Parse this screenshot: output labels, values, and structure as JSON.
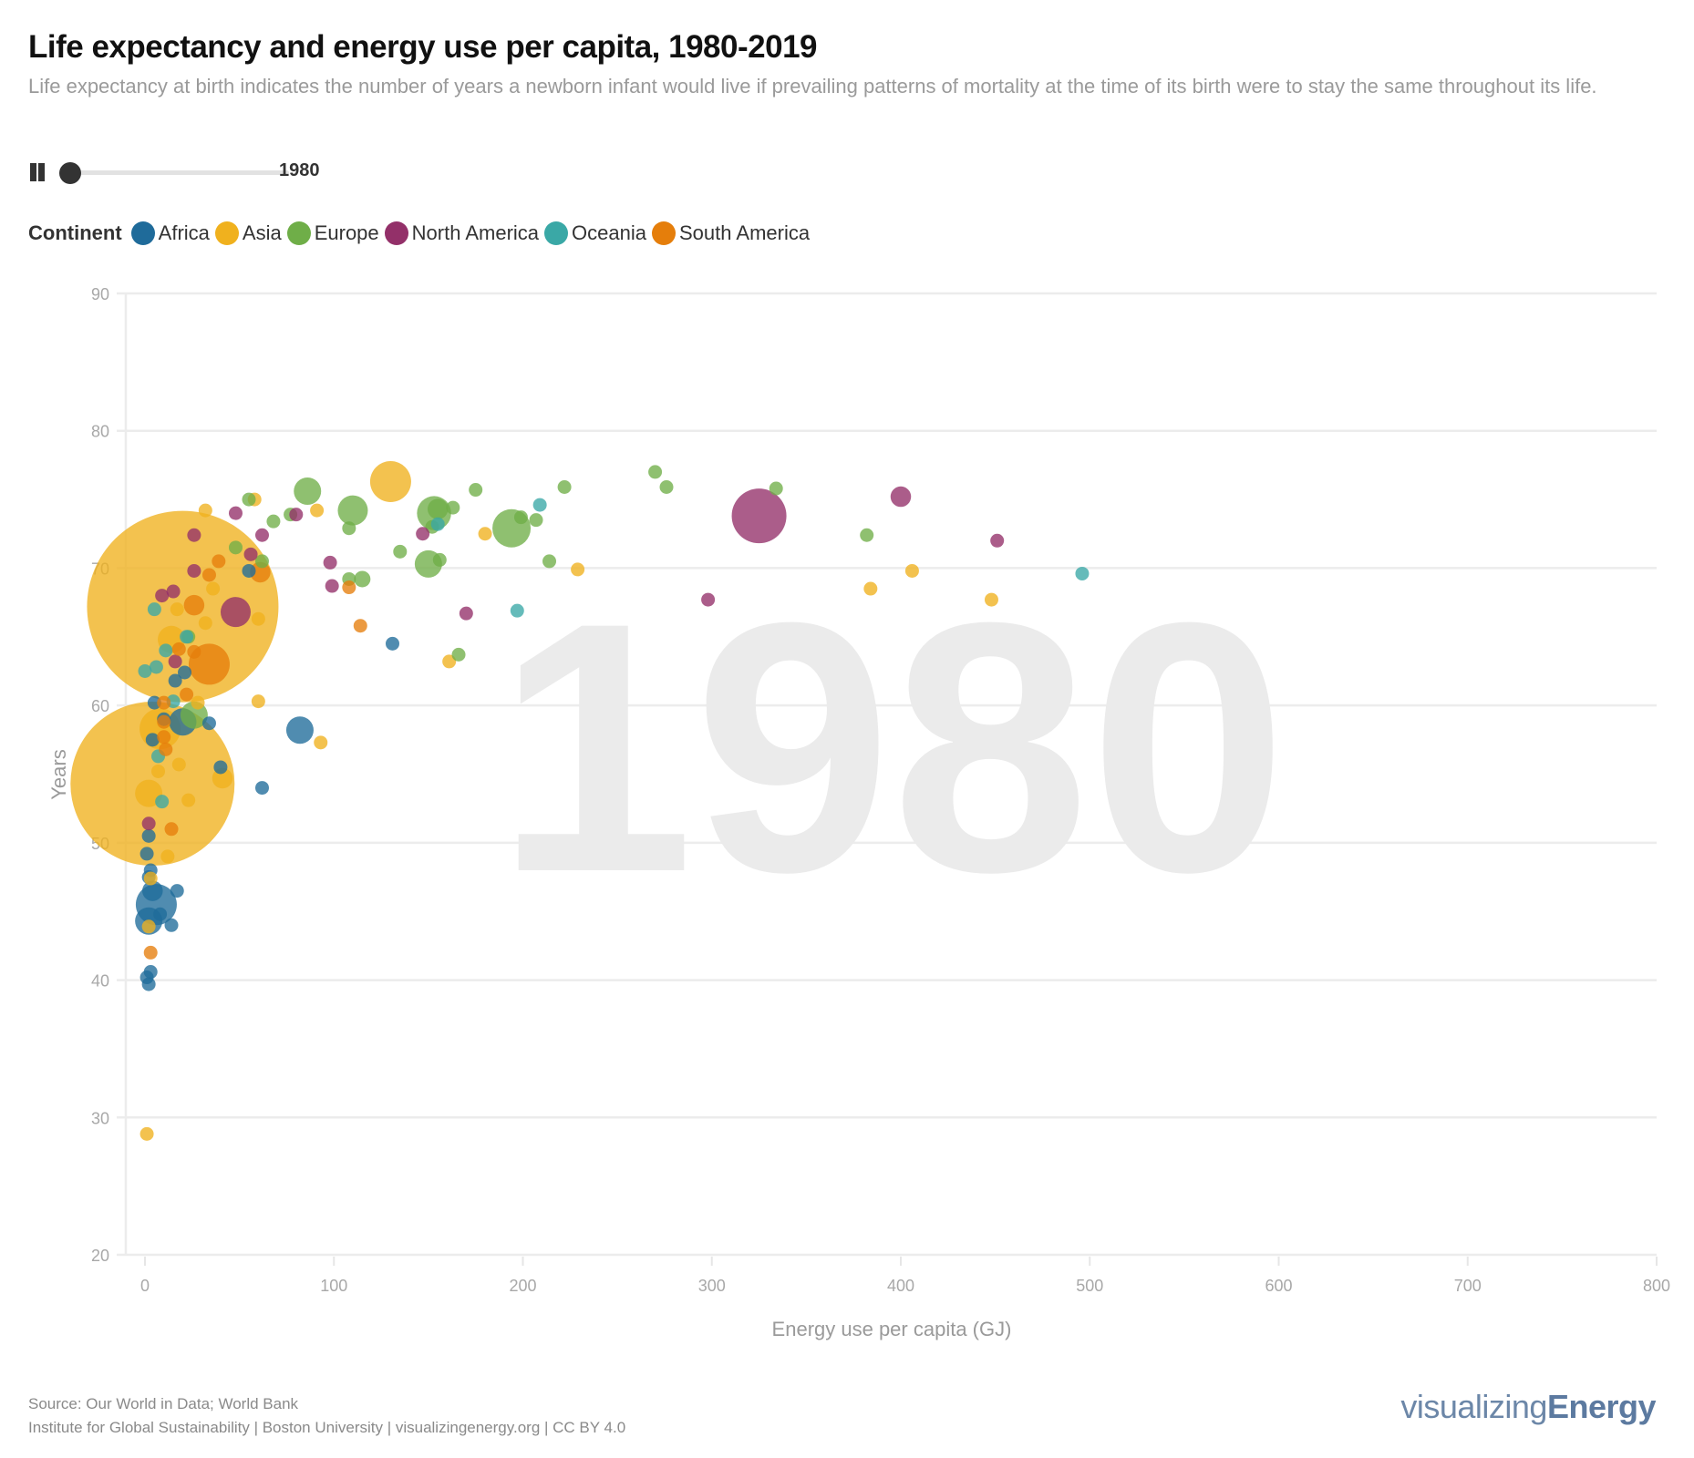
{
  "header": {
    "title": "Life expectancy and energy use per capita, 1980-2019",
    "subtitle": "Life expectancy at birth indicates the number of years a newborn infant would live if prevailing patterns of mortality at the time of its birth were to stay the same throughout its life."
  },
  "player": {
    "state_icon": "pause-icon",
    "year": "1980",
    "year_range": [
      1980,
      2019
    ],
    "progress": 0
  },
  "legend": {
    "title": "Continent",
    "items": [
      {
        "label": "Africa",
        "color": "#1f6b9a"
      },
      {
        "label": "Asia",
        "color": "#f0b11e"
      },
      {
        "label": "Europe",
        "color": "#6fae48"
      },
      {
        "label": "North America",
        "color": "#933069"
      },
      {
        "label": "Oceania",
        "color": "#3aa8a6"
      },
      {
        "label": "South America",
        "color": "#e57e0b"
      }
    ]
  },
  "footer": {
    "source": "Source: Our World in Data; World Bank",
    "credit": "Institute for Global Sustainability | Boston University | visualizingenergy.org | CC BY 4.0",
    "brand_light": "visualizing",
    "brand_bold": "Energy"
  },
  "chart_data": {
    "type": "scatter",
    "title": "Life expectancy and energy use per capita, 1980-2019",
    "xlabel": "Energy use per capita (GJ)",
    "ylabel": "Years",
    "xlim": [
      0,
      800
    ],
    "ylim": [
      20,
      90
    ],
    "xticks": [
      "0",
      "100",
      "200",
      "300",
      "400",
      "500",
      "600",
      "700",
      "800"
    ],
    "yticks": [
      "20",
      "30",
      "40",
      "50",
      "60",
      "70",
      "80",
      "90"
    ],
    "grid": "horizontal",
    "watermark": "1980",
    "legend_placement": "top-left",
    "size_encoding": "population (relative)",
    "series": [
      {
        "name": "Africa",
        "points": [
          [
            55,
            69.8,
            1
          ],
          [
            131,
            64.5,
            1
          ],
          [
            82,
            58.2,
            2
          ],
          [
            62,
            54,
            1
          ],
          [
            40,
            55.5,
            1
          ],
          [
            34,
            58.7,
            1
          ],
          [
            20,
            58.8,
            2
          ],
          [
            16,
            61.8,
            1
          ],
          [
            21,
            62.4,
            1
          ],
          [
            5,
            60.2,
            1
          ],
          [
            4,
            57.5,
            1
          ],
          [
            2,
            50.5,
            1
          ],
          [
            1,
            49.2,
            1
          ],
          [
            2,
            47.5,
            1
          ],
          [
            4,
            46.5,
            1.5
          ],
          [
            6,
            45.5,
            3
          ],
          [
            8,
            44.8,
            1
          ],
          [
            2,
            44.3,
            2
          ],
          [
            17,
            46.5,
            1
          ],
          [
            14,
            44,
            1
          ],
          [
            3,
            40.6,
            1
          ],
          [
            1,
            40.2,
            1
          ],
          [
            2,
            39.7,
            1
          ],
          [
            3,
            48,
            1
          ],
          [
            10,
            59,
            1
          ]
        ]
      },
      {
        "name": "Asia",
        "points": [
          [
            20,
            67.2,
            14
          ],
          [
            4,
            54.3,
            12
          ],
          [
            130,
            76.3,
            3
          ],
          [
            8,
            58.3,
            3
          ],
          [
            2,
            53.6,
            2
          ],
          [
            14,
            64.8,
            2
          ],
          [
            41,
            54.7,
            1.5
          ],
          [
            32,
            74.2,
            1
          ],
          [
            58,
            75
          ],
          [
            91,
            74.2,
            1
          ],
          [
            60,
            66.3,
            1
          ],
          [
            60,
            60.3,
            1
          ],
          [
            93,
            57.3,
            1
          ],
          [
            36,
            68.5,
            1
          ],
          [
            32,
            66,
            1
          ],
          [
            180,
            72.5,
            1
          ],
          [
            229,
            69.9,
            1
          ],
          [
            161,
            63.2,
            1
          ],
          [
            384,
            68.5,
            1
          ],
          [
            406,
            69.8,
            1
          ],
          [
            448,
            67.7,
            1
          ],
          [
            12,
            49,
            1
          ],
          [
            2,
            43.9,
            1
          ],
          [
            1,
            28.8,
            1
          ],
          [
            3,
            47.4,
            1
          ],
          [
            23,
            53.1,
            1
          ],
          [
            18,
            55.7,
            1
          ],
          [
            7,
            55.2,
            1
          ],
          [
            17,
            67,
            1
          ],
          [
            28,
            60.2,
            1
          ]
        ]
      },
      {
        "name": "Europe",
        "points": [
          [
            86,
            75.6,
            2
          ],
          [
            110,
            74.2,
            2.2
          ],
          [
            153,
            74,
            2.5
          ],
          [
            150,
            70.3,
            2
          ],
          [
            194,
            72.9,
            2.8
          ],
          [
            155,
            74.3,
            1.5
          ],
          [
            163,
            74.4,
            1
          ],
          [
            175,
            75.7,
            1
          ],
          [
            199,
            73.7,
            1
          ],
          [
            207,
            73.5,
            1
          ],
          [
            222,
            75.9,
            1
          ],
          [
            214,
            70.5,
            1
          ],
          [
            270,
            77
          ],
          [
            276,
            75.9,
            1
          ],
          [
            334,
            75.8,
            1
          ],
          [
            382,
            72.4,
            1
          ],
          [
            135,
            71.2,
            1
          ],
          [
            156,
            70.6,
            1
          ],
          [
            115,
            69.2,
            1.2
          ],
          [
            108,
            69.2,
            1
          ],
          [
            108,
            72.9,
            1
          ],
          [
            55,
            75
          ],
          [
            48,
            71.5,
            1
          ],
          [
            62,
            70.5,
            1
          ],
          [
            68,
            73.4,
            1
          ],
          [
            77,
            73.9,
            1
          ],
          [
            166,
            63.7,
            1
          ],
          [
            26,
            59.3,
            2
          ],
          [
            23,
            65,
            1
          ],
          [
            152,
            73,
            1
          ]
        ]
      },
      {
        "name": "North America",
        "points": [
          [
            325,
            73.8,
            4
          ],
          [
            400,
            75.2,
            1.5
          ],
          [
            451,
            72,
            1
          ],
          [
            298,
            67.7,
            1
          ],
          [
            170,
            66.7,
            1
          ],
          [
            98,
            70.4,
            1
          ],
          [
            99,
            68.7,
            1
          ],
          [
            80,
            73.9,
            1
          ],
          [
            48,
            74,
            1
          ],
          [
            62,
            72.4,
            1
          ],
          [
            56,
            71,
            1
          ],
          [
            26,
            72.4,
            1
          ],
          [
            26,
            69.8,
            1
          ],
          [
            48,
            66.8,
            2.2
          ],
          [
            15,
            68.3,
            1
          ],
          [
            9,
            68,
            1
          ],
          [
            16,
            63.2,
            1
          ],
          [
            147,
            72.5,
            1
          ],
          [
            2,
            51.4,
            1
          ]
        ]
      },
      {
        "name": "Oceania",
        "points": [
          [
            496,
            69.6,
            1
          ],
          [
            209,
            74.6,
            1
          ],
          [
            155,
            73.2,
            1
          ],
          [
            197,
            66.9,
            1
          ],
          [
            0,
            62.5,
            1
          ],
          [
            6,
            62.8,
            1
          ],
          [
            11,
            64,
            1
          ],
          [
            22,
            65,
            1
          ],
          [
            15,
            60.3,
            1
          ],
          [
            7,
            56.3,
            1
          ],
          [
            9,
            53,
            1
          ],
          [
            5,
            67,
            1
          ]
        ]
      },
      {
        "name": "South America",
        "points": [
          [
            34,
            63,
            3
          ],
          [
            61,
            69.7,
            1.5
          ],
          [
            26,
            67.3,
            1.5
          ],
          [
            39,
            70.5,
            1
          ],
          [
            108,
            68.6,
            1
          ],
          [
            114,
            65.8,
            1
          ],
          [
            34,
            69.5,
            1
          ],
          [
            26,
            63.9,
            1
          ],
          [
            22,
            60.8,
            1
          ],
          [
            18,
            64.1,
            1
          ],
          [
            10,
            60.2,
            1
          ],
          [
            10,
            58.8,
            1
          ],
          [
            10,
            57.7,
            1
          ],
          [
            11,
            56.8,
            1
          ],
          [
            14,
            51,
            1
          ],
          [
            3,
            42,
            1
          ]
        ]
      }
    ]
  }
}
